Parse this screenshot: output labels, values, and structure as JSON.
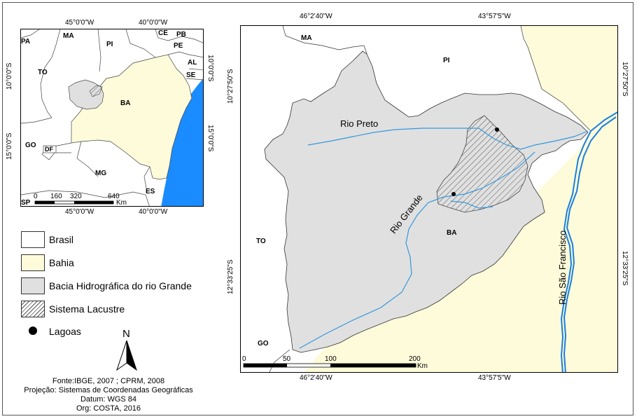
{
  "inset": {
    "coords_top": [
      "45°0'0\"W",
      "40°0'0\"W"
    ],
    "coords_bottom": [
      "45°0'0\"W",
      "40°0'0\"W"
    ],
    "coords_left": [
      "10°0'0\"S",
      "15°0'0\"S"
    ],
    "coords_right": [
      "10°0'0\"S",
      "15°0'0\"S"
    ],
    "states": [
      "PA",
      "MA",
      "CE",
      "PB",
      "PI",
      "PE",
      "AL",
      "SE",
      "TO",
      "BA",
      "GO",
      "DF",
      "MG",
      "ES",
      "SP"
    ],
    "scale": {
      "ticks": [
        "0",
        "160",
        "320",
        "640"
      ],
      "unit": "Km"
    }
  },
  "main": {
    "coords_top": [
      "46°2'40\"W",
      "43°57'5\"W"
    ],
    "coords_bottom": [
      "46°2'40\"W",
      "43°57'5\"W"
    ],
    "coords_left": [
      "10°27'50\"S",
      "12°33'25\"S"
    ],
    "coords_right": [
      "10°27'50\"S",
      "12°33'25\"S"
    ],
    "states": [
      "MA",
      "PI",
      "TO",
      "BA",
      "GO"
    ],
    "rivers": [
      "Rio Preto",
      "Rio Grande",
      "Rio São Francisco"
    ],
    "scale": {
      "ticks": [
        "0",
        "50",
        "100",
        "200"
      ],
      "unit": "Km"
    }
  },
  "legend": [
    "Brasil",
    "Bahia",
    "Bacia Hidrográfica do rio Grande",
    "Sistema Lacustre",
    "Lagoas"
  ],
  "north_label": "N",
  "credits": [
    "Fonte:IBGE, 2007 ; CPRM, 2008",
    "Projeção: Sistemas de Coordenadas Geográficas",
    "Datum: WGS 84",
    "Org: COSTA, 2016"
  ],
  "colors": {
    "bahia": "#fdfbd9",
    "basin": "#e0e0e0",
    "ocean": "#1a8cff",
    "river": "#3399dd"
  }
}
